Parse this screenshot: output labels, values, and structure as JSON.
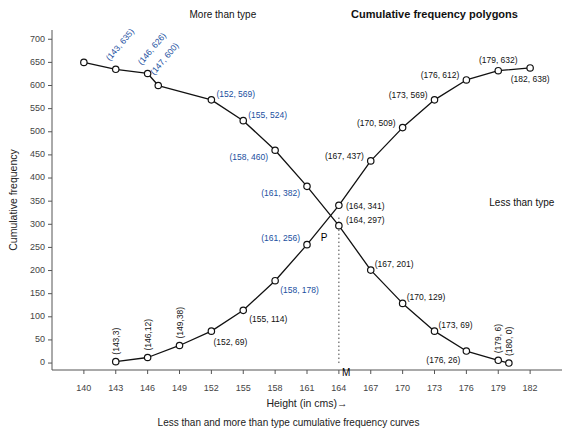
{
  "chart_data": {
    "type": "line",
    "title": "Cumulative frequency polygons",
    "subtitle": "Less than and more than type cumulative frequency curves",
    "xlabel": "Height (in cms)→",
    "ylabel": "Cumulative frequency",
    "series": [
      {
        "name": "More than type",
        "color": "#111111",
        "marker": "circle",
        "x": [
          140,
          143,
          146,
          147,
          152,
          155,
          158,
          161,
          164,
          167,
          170,
          173,
          176,
          179,
          180
        ],
        "values": [
          650,
          635,
          626,
          600,
          569,
          524,
          460,
          382,
          297,
          201,
          129,
          69,
          26,
          6,
          0
        ]
      },
      {
        "name": "Less than type",
        "color": "#111111",
        "marker": "circle",
        "x": [
          143,
          146,
          149,
          152,
          155,
          158,
          161,
          164,
          167,
          170,
          173,
          176,
          179,
          182
        ],
        "values": [
          3,
          12,
          38,
          69,
          114,
          178,
          256,
          341,
          437,
          509,
          569,
          612,
          632,
          638
        ]
      }
    ],
    "reference_lines": [
      {
        "x": 164,
        "y0": 0,
        "y1": 319,
        "line_style": "dotted"
      }
    ],
    "annotations": [
      {
        "text": "(143, 635)",
        "x": 143,
        "y": 635,
        "color": "#1a4fa0"
      },
      {
        "text": "(146, 626)",
        "x": 146,
        "y": 626,
        "color": "#1a4fa0"
      },
      {
        "text": "(147, 600)",
        "x": 147,
        "y": 600,
        "color": "#1a4fa0"
      },
      {
        "text": "(152, 569)",
        "x": 152,
        "y": 569,
        "color": "#1a4fa0"
      },
      {
        "text": "(155, 524)",
        "x": 155,
        "y": 524,
        "color": "#1a4fa0"
      },
      {
        "text": "(158, 460)",
        "x": 158,
        "y": 460,
        "color": "#1a4fa0"
      },
      {
        "text": "(161, 382)",
        "x": 161,
        "y": 382,
        "color": "#1a4fa0"
      },
      {
        "text": "(161, 256)",
        "x": 161,
        "y": 256,
        "color": "#1a4fa0"
      },
      {
        "text": "(158, 178)",
        "x": 158,
        "y": 178,
        "color": "#1a4fa0"
      },
      {
        "text": "(143,3)",
        "x": 143,
        "y": 3,
        "color": "#111111"
      },
      {
        "text": "(146,12)",
        "x": 146,
        "y": 12,
        "color": "#111111"
      },
      {
        "text": "(149,38)",
        "x": 149,
        "y": 38,
        "color": "#111111"
      },
      {
        "text": "(152, 69)",
        "x": 152,
        "y": 69,
        "color": "#111111"
      },
      {
        "text": "(155, 114)",
        "x": 155,
        "y": 114,
        "color": "#111111"
      },
      {
        "text": "(164, 341)",
        "x": 164,
        "y": 341,
        "color": "#111111"
      },
      {
        "text": "(164, 297)",
        "x": 164,
        "y": 297,
        "color": "#111111"
      },
      {
        "text": "(167, 437)",
        "x": 167,
        "y": 437,
        "color": "#111111"
      },
      {
        "text": "(167, 201)",
        "x": 167,
        "y": 201,
        "color": "#111111"
      },
      {
        "text": "(170, 509)",
        "x": 170,
        "y": 509,
        "color": "#111111"
      },
      {
        "text": "(170, 129)",
        "x": 170,
        "y": 129,
        "color": "#111111"
      },
      {
        "text": "(173, 569)",
        "x": 173,
        "y": 569,
        "color": "#111111"
      },
      {
        "text": "(173, 69)",
        "x": 173,
        "y": 69,
        "color": "#111111"
      },
      {
        "text": "(176, 612)",
        "x": 176,
        "y": 612,
        "color": "#111111"
      },
      {
        "text": "(176, 26)",
        "x": 176,
        "y": 26,
        "color": "#111111"
      },
      {
        "text": "(179, 632)",
        "x": 179,
        "y": 632,
        "color": "#111111"
      },
      {
        "text": "(182, 638)",
        "x": 182,
        "y": 638,
        "color": "#111111"
      },
      {
        "text": "(179, 6)",
        "x": 179,
        "y": 6,
        "color": "#111111"
      },
      {
        "text": "(180, 0)",
        "x": 180,
        "y": 0,
        "color": "#111111"
      },
      {
        "text": "M",
        "x": 164.3,
        "y": -10,
        "color": "#000000"
      },
      {
        "text": "P",
        "x": 162.3,
        "y": 270,
        "color": "#000000"
      }
    ],
    "xlim": [
      137,
      185
    ],
    "ylim": [
      -15,
      720
    ],
    "xticks": [
      140,
      143,
      146,
      149,
      152,
      155,
      158,
      161,
      164,
      167,
      170,
      173,
      176,
      179,
      182
    ],
    "yticks": [
      0,
      50,
      100,
      150,
      200,
      250,
      300,
      350,
      400,
      450,
      500,
      550,
      600,
      650,
      700
    ]
  }
}
